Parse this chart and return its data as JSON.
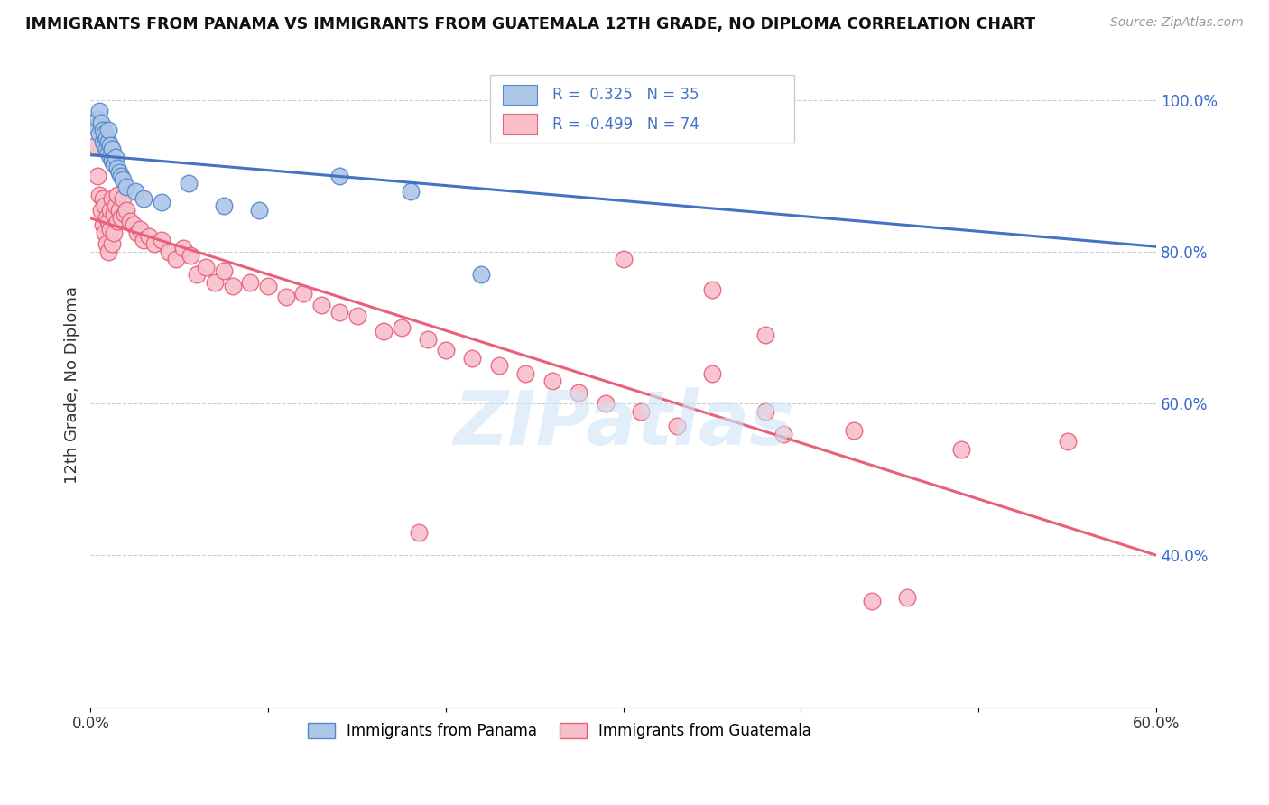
{
  "title": "IMMIGRANTS FROM PANAMA VS IMMIGRANTS FROM GUATEMALA 12TH GRADE, NO DIPLOMA CORRELATION CHART",
  "source": "Source: ZipAtlas.com",
  "ylabel": "12th Grade, No Diploma",
  "xlim": [
    0.0,
    0.6
  ],
  "ylim": [
    0.2,
    1.05
  ],
  "xtick_positions": [
    0.0,
    0.1,
    0.2,
    0.3,
    0.4,
    0.5,
    0.6
  ],
  "xticklabels": [
    "0.0%",
    "",
    "",
    "",
    "",
    "",
    "60.0%"
  ],
  "yticks_right": [
    0.4,
    0.6,
    0.8,
    1.0
  ],
  "ytick_labels_right": [
    "40.0%",
    "60.0%",
    "80.0%",
    "100.0%"
  ],
  "panama_color": "#aec6e8",
  "panama_edge": "#5588cc",
  "guatemala_color": "#f7bfca",
  "guatemala_edge": "#e8607a",
  "trend_blue": "#4472c4",
  "trend_pink": "#e8607a",
  "R_panama": 0.325,
  "N_panama": 35,
  "R_guatemala": -0.499,
  "N_guatemala": 74,
  "legend_panama": "Immigrants from Panama",
  "legend_guatemala": "Immigrants from Guatemala",
  "watermark": "ZIPatlas",
  "panama_x": [
    0.003,
    0.004,
    0.005,
    0.005,
    0.006,
    0.007,
    0.007,
    0.008,
    0.008,
    0.009,
    0.009,
    0.01,
    0.01,
    0.01,
    0.011,
    0.011,
    0.012,
    0.012,
    0.013,
    0.014,
    0.015,
    0.016,
    0.017,
    0.018,
    0.02,
    0.025,
    0.03,
    0.04,
    0.055,
    0.075,
    0.095,
    0.14,
    0.18,
    0.22,
    0.38
  ],
  "panama_y": [
    0.965,
    0.975,
    0.955,
    0.985,
    0.97,
    0.945,
    0.96,
    0.94,
    0.955,
    0.935,
    0.95,
    0.93,
    0.945,
    0.96,
    0.925,
    0.94,
    0.935,
    0.92,
    0.915,
    0.925,
    0.91,
    0.905,
    0.9,
    0.895,
    0.885,
    0.88,
    0.87,
    0.865,
    0.89,
    0.86,
    0.855,
    0.9,
    0.88,
    0.77,
    0.96
  ],
  "guatemala_x": [
    0.003,
    0.004,
    0.005,
    0.006,
    0.007,
    0.007,
    0.008,
    0.008,
    0.009,
    0.009,
    0.01,
    0.01,
    0.011,
    0.011,
    0.012,
    0.012,
    0.013,
    0.013,
    0.014,
    0.015,
    0.015,
    0.016,
    0.017,
    0.018,
    0.019,
    0.02,
    0.022,
    0.024,
    0.026,
    0.028,
    0.03,
    0.033,
    0.036,
    0.04,
    0.044,
    0.048,
    0.052,
    0.056,
    0.06,
    0.065,
    0.07,
    0.075,
    0.08,
    0.09,
    0.1,
    0.11,
    0.12,
    0.13,
    0.14,
    0.15,
    0.165,
    0.175,
    0.19,
    0.2,
    0.215,
    0.23,
    0.245,
    0.26,
    0.275,
    0.29,
    0.31,
    0.33,
    0.35,
    0.38,
    0.39,
    0.3,
    0.185,
    0.35,
    0.43,
    0.46,
    0.49,
    0.38,
    0.44,
    0.55
  ],
  "guatemala_y": [
    0.94,
    0.9,
    0.875,
    0.855,
    0.87,
    0.835,
    0.86,
    0.825,
    0.845,
    0.81,
    0.84,
    0.8,
    0.855,
    0.83,
    0.81,
    0.87,
    0.85,
    0.825,
    0.86,
    0.875,
    0.84,
    0.855,
    0.845,
    0.87,
    0.85,
    0.855,
    0.84,
    0.835,
    0.825,
    0.83,
    0.815,
    0.82,
    0.81,
    0.815,
    0.8,
    0.79,
    0.805,
    0.795,
    0.77,
    0.78,
    0.76,
    0.775,
    0.755,
    0.76,
    0.755,
    0.74,
    0.745,
    0.73,
    0.72,
    0.715,
    0.695,
    0.7,
    0.685,
    0.67,
    0.66,
    0.65,
    0.64,
    0.63,
    0.615,
    0.6,
    0.59,
    0.57,
    0.64,
    0.59,
    0.56,
    0.79,
    0.43,
    0.75,
    0.565,
    0.345,
    0.54,
    0.69,
    0.34,
    0.55
  ]
}
